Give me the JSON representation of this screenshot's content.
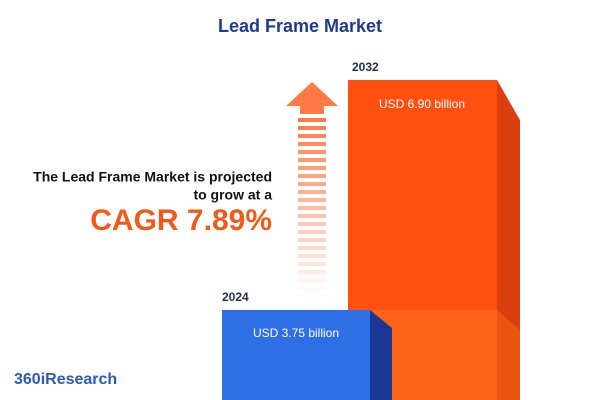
{
  "title": "Lead Frame Market",
  "statement": {
    "line1": "The Lead Frame Market is projected",
    "line2": "to grow at a",
    "cagr": "CAGR 7.89%"
  },
  "bars": [
    {
      "year": "2024",
      "label": "USD 3.75 billion"
    },
    {
      "year": "2032",
      "label": "USD 6.90 billion"
    }
  ],
  "brand": "360iResearch"
}
